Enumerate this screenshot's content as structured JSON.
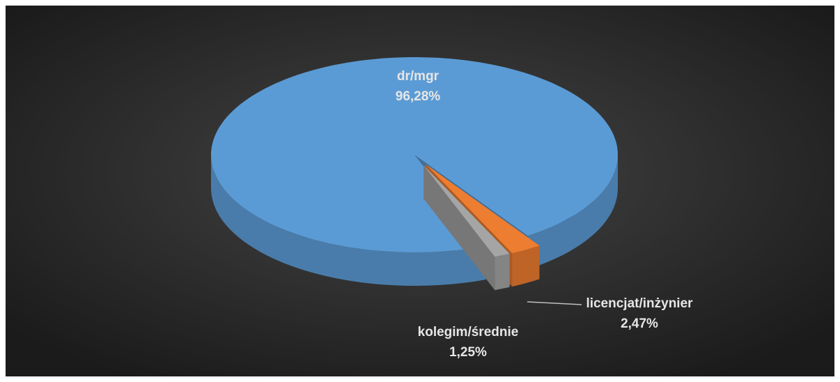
{
  "chart_data": {
    "type": "pie3d",
    "categories": [
      "dr/mgr",
      "licencjat/inżynier",
      "kolegim/średnie"
    ],
    "values": [
      96.28,
      2.47,
      1.25
    ],
    "value_labels": [
      "96,28%",
      "2,47%",
      "1,25%"
    ],
    "colors": [
      "#5b9bd5",
      "#ed7d31",
      "#a5a5a5"
    ]
  }
}
